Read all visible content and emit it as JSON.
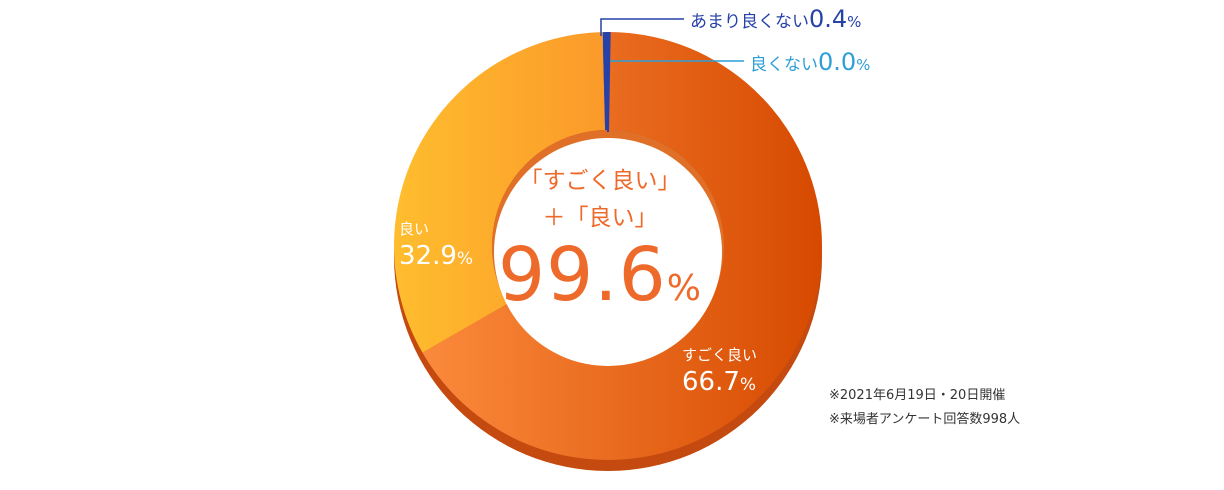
{
  "chart_data": {
    "type": "pie",
    "variant": "donut",
    "series": [
      {
        "name": "すごく良い",
        "value": 66.7,
        "value_text": "66.7",
        "unit": "%",
        "color_start": "#fb8a3c",
        "color_end": "#d64a00"
      },
      {
        "name": "良い",
        "value": 32.9,
        "value_text": "32.9",
        "unit": "%",
        "color_start": "#ffbd2e",
        "color_end": "#fb9a2a"
      },
      {
        "name": "良くない",
        "value": 0.0,
        "value_text": "0.0",
        "unit": "%",
        "color": "#2e9fd6"
      },
      {
        "name": "あまり良くない",
        "value": 0.4,
        "value_text": "0.4",
        "unit": "%",
        "color": "#2642a8"
      }
    ],
    "center": {
      "line1": "「すごく良い」",
      "line2": "＋「良い」",
      "total_value": "99.6",
      "total_unit": "%"
    },
    "legend": "none"
  },
  "notes": [
    "※2021年6月19日・20日開催",
    "※来場者アンケート回答数998人"
  ],
  "colors": {
    "accent_text": "#ee6a2a",
    "label_white": "#ffffff",
    "callout_dark_blue": "#2642a8",
    "callout_light_blue": "#2e9fd6",
    "shadow_rim": "#c44a10"
  }
}
